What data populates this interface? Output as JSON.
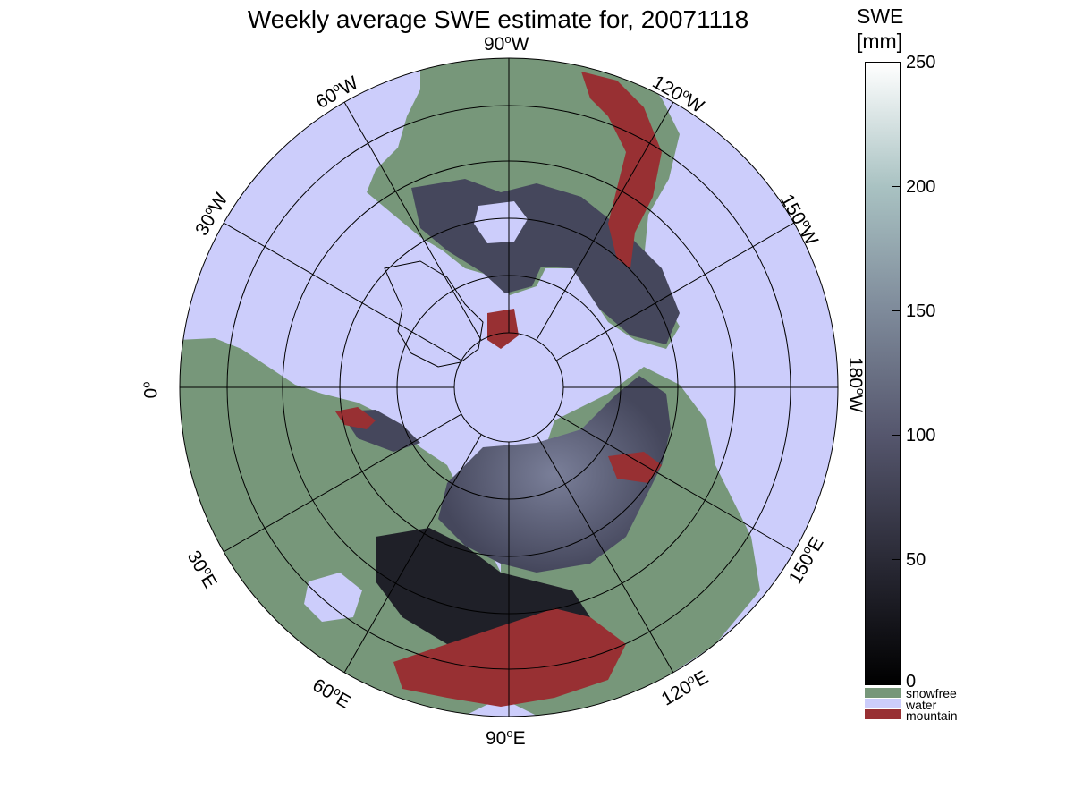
{
  "title": "Weekly average SWE estimate for, 20071118",
  "colorbar": {
    "title_line1": "SWE",
    "title_line2": "[mm]",
    "ticks": [
      "250",
      "200",
      "150",
      "100",
      "50",
      "0"
    ],
    "range_mm": [
      0,
      250
    ],
    "gradient_colors": [
      "#000000",
      "#2a2a36",
      "#55566d",
      "#7e8a9a",
      "#a9c2c2",
      "#ffffff"
    ]
  },
  "legend": [
    {
      "label": "snowfree",
      "color": "#77977a"
    },
    {
      "label": "water",
      "color": "#cccdfb"
    },
    {
      "label": "mountain",
      "color": "#983033"
    }
  ],
  "map": {
    "projection": "north polar stereographic",
    "colors": {
      "water": "#cccdfb",
      "land": "#77977a",
      "snow": "#45475c",
      "deep_snow": "#5c6078",
      "mountain": "#983033"
    },
    "longitude_labels": [
      {
        "deg": "90",
        "dir": "W"
      },
      {
        "deg": "120",
        "dir": "W"
      },
      {
        "deg": "150",
        "dir": "W"
      },
      {
        "deg": "180",
        "dir": "W"
      },
      {
        "deg": "150",
        "dir": "E"
      },
      {
        "deg": "120",
        "dir": "E"
      },
      {
        "deg": "90",
        "dir": "E"
      },
      {
        "deg": "60",
        "dir": "E"
      },
      {
        "deg": "30",
        "dir": "E"
      },
      {
        "deg": "0",
        "dir": ""
      },
      {
        "deg": "30",
        "dir": "W"
      },
      {
        "deg": "60",
        "dir": "W"
      }
    ]
  }
}
